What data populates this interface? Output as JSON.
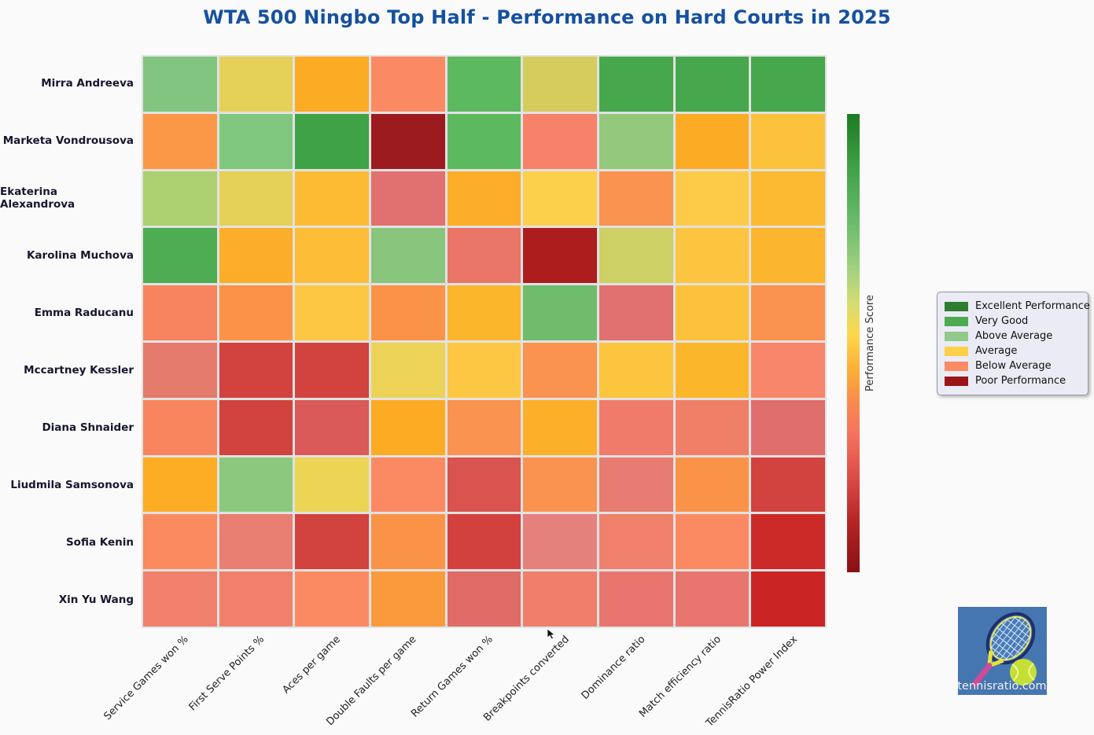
{
  "title": "WTA 500 Ningbo Top Half - Performance on Hard Courts in 2025",
  "colors": {
    "title": "#15519f",
    "background": "#fafafa",
    "grid_gap": "#e2e2e2",
    "row_label_text": "#16162e",
    "col_label_text": "#222222",
    "legend_bg": "#eaebf4"
  },
  "chart_data": {
    "type": "heatmap",
    "title": "WTA 500 Ningbo Top Half - Performance on Hard Courts in 2025",
    "rows": [
      "Mirra Andreeva",
      "Marketa Vondrousova",
      "Ekaterina Alexandrova",
      "Karolina Muchova",
      "Emma Raducanu",
      "Mccartney Kessler",
      "Diana Shnaider",
      "Liudmila Samsonova",
      "Sofia Kenin",
      "Xin Yu Wang"
    ],
    "columns": [
      "Service Games won %",
      "First Serve Points %",
      "Aces per game",
      "Double Faults per game",
      "Return Games won %",
      "Breakpoints converted",
      "Dominance ratio",
      "Match efficiency ratio",
      "TennisRatio Power Index"
    ],
    "cell_colors": [
      [
        "#82c581",
        "#e5d058",
        "#fcab25",
        "#fb8a64",
        "#5db95f",
        "#d6cc5e",
        "#47a74c",
        "#47a74c",
        "#47a74c"
      ],
      [
        "#fa9847",
        "#80c77f",
        "#3fa246",
        "#9b1b1e",
        "#5db95f",
        "#f8816a",
        "#93c87d",
        "#fcab24",
        "#fdc23c"
      ],
      [
        "#accf70",
        "#e5d058",
        "#fcbb33",
        "#e07170",
        "#fcad29",
        "#fcd04b",
        "#fa9350",
        "#fdcb47",
        "#fcba33"
      ],
      [
        "#4ead53",
        "#fcad29",
        "#fdbd36",
        "#8ac57d",
        "#e87568",
        "#ad1d1d",
        "#cdd065",
        "#fdc440",
        "#fcb52e"
      ],
      [
        "#f8845f",
        "#fa9348",
        "#fdc743",
        "#fa9348",
        "#fcb62c",
        "#6fbc6d",
        "#e07170",
        "#fdc23b",
        "#fa9350"
      ],
      [
        "#e57b6c",
        "#d2423e",
        "#d2423e",
        "#ecd358",
        "#fdc743",
        "#fa9350",
        "#fdc43d",
        "#fcb62c",
        "#f8866a"
      ],
      [
        "#f8855e",
        "#d2423e",
        "#da5959",
        "#fcab22",
        "#fa9350",
        "#fcb029",
        "#f07b6b",
        "#f07f68",
        "#e06e6c"
      ],
      [
        "#fcad24",
        "#8cc87e",
        "#ecd455",
        "#fb8a62",
        "#d9534f",
        "#fa9350",
        "#e87b72",
        "#fa9348",
        "#d2423e"
      ],
      [
        "#fb8a5e",
        "#e87f72",
        "#d2423e",
        "#fa9348",
        "#d2413e",
        "#e5817c",
        "#f0806c",
        "#fb8a62",
        "#cb2a28"
      ],
      [
        "#f0806c",
        "#f0806c",
        "#fb8a62",
        "#fa9a3d",
        "#df6b67",
        "#ef7f6a",
        "#e8766e",
        "#e8766e",
        "#cb2424"
      ]
    ],
    "legend": [
      {
        "label": "Excellent Performance",
        "color": "#2d7d30"
      },
      {
        "label": "Very Good",
        "color": "#4cab50"
      },
      {
        "label": "Above Average",
        "color": "#90c98a"
      },
      {
        "label": "Average",
        "color": "#fdd04a"
      },
      {
        "label": "Below Average",
        "color": "#fb8b62"
      },
      {
        "label": "Poor Performance",
        "color": "#9a1518"
      }
    ],
    "legend_position": "right",
    "colorbar_label": "Performance Score",
    "colorbar_gradient": [
      "#1d7a22 0%",
      "#3fa348 12%",
      "#6cbc6c 24%",
      "#9ccf7f 33%",
      "#d2dc74 41%",
      "#fdd84e 48%",
      "#fcae38 56%",
      "#f9894f 63%",
      "#f4735e 70%",
      "#dc4d48 79%",
      "#b62426 89%",
      "#871114 100%"
    ]
  },
  "branding": {
    "text": "tennisratio.com"
  }
}
